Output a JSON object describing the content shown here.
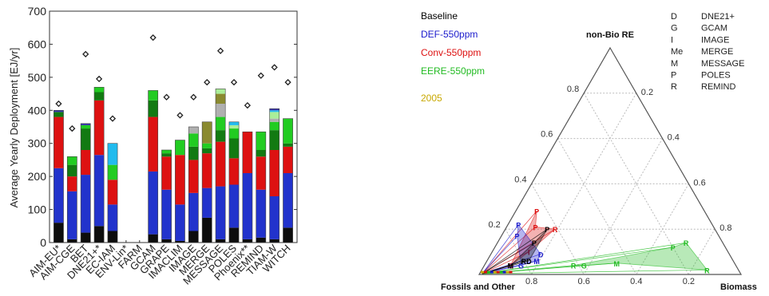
{
  "bar_chart": {
    "ylabel": "Average Yearly Deployment [EJ/yr]",
    "ylim": [
      0,
      700
    ],
    "yticks": [
      "0",
      "100",
      "200",
      "300",
      "400",
      "500",
      "600",
      "700"
    ],
    "colors": {
      "l1": "#0d0d0d",
      "l2": "#2233cc",
      "l3": "#dd1111",
      "l4": "#127a12",
      "l5": "#22cc22",
      "l6": "#b0b0b0",
      "l7": "#8a8a30",
      "l8": "#aaee99",
      "l9": "#22bbee",
      "l10": "#3333aa",
      "diamond": "#222222"
    }
  },
  "chart_data": [
    {
      "type": "bar",
      "stacked": true,
      "categories": [
        "AIM-EU*",
        "AIM-CGE",
        "BET",
        "DNE21+*",
        "EC-IAM",
        "ENV-Lin*",
        "FARM",
        "GCAM",
        "GRAPE",
        "IMACLIM",
        "IMAGE",
        "MERGE",
        "MESSAGE",
        "POLES",
        "Phoenix**",
        "REMIND",
        "TIAM-W",
        "WITCH"
      ],
      "series": [
        {
          "name": "",
          "color_key": "l1",
          "values": [
            60,
            10,
            30,
            50,
            35,
            0,
            0,
            25,
            10,
            5,
            35,
            75,
            10,
            45,
            10,
            15,
            10,
            45
          ]
        },
        {
          "name": "",
          "color_key": "l2",
          "values": [
            165,
            145,
            175,
            215,
            80,
            0,
            0,
            190,
            150,
            110,
            115,
            90,
            160,
            130,
            200,
            145,
            130,
            165
          ]
        },
        {
          "name": "",
          "color_key": "l3",
          "values": [
            155,
            45,
            75,
            165,
            75,
            0,
            0,
            165,
            100,
            150,
            100,
            105,
            135,
            80,
            125,
            100,
            140,
            80
          ]
        },
        {
          "name": "",
          "color_key": "l4",
          "values": [
            15,
            35,
            65,
            25,
            0,
            0,
            0,
            50,
            10,
            0,
            40,
            15,
            35,
            60,
            0,
            20,
            60,
            10
          ]
        },
        {
          "name": "",
          "color_key": "l5",
          "values": [
            0,
            25,
            10,
            15,
            45,
            0,
            0,
            30,
            10,
            45,
            40,
            15,
            40,
            30,
            0,
            55,
            25,
            75
          ]
        },
        {
          "name": "",
          "color_key": "l6",
          "values": [
            0,
            0,
            0,
            0,
            0,
            0,
            0,
            0,
            0,
            0,
            20,
            0,
            40,
            0,
            0,
            0,
            10,
            0
          ]
        },
        {
          "name": "",
          "color_key": "l7",
          "values": [
            0,
            0,
            0,
            0,
            0,
            0,
            0,
            0,
            0,
            0,
            0,
            65,
            30,
            0,
            0,
            0,
            0,
            0
          ]
        },
        {
          "name": "",
          "color_key": "l8",
          "values": [
            0,
            0,
            0,
            0,
            0,
            0,
            0,
            0,
            0,
            0,
            0,
            0,
            15,
            10,
            0,
            0,
            20,
            0
          ]
        },
        {
          "name": "",
          "color_key": "l9",
          "values": [
            0,
            0,
            0,
            0,
            65,
            0,
            0,
            0,
            0,
            0,
            0,
            0,
            0,
            10,
            0,
            0,
            5,
            0
          ]
        },
        {
          "name": "",
          "color_key": "l10",
          "values": [
            5,
            0,
            5,
            0,
            0,
            0,
            0,
            0,
            0,
            0,
            0,
            0,
            0,
            0,
            0,
            0,
            5,
            0
          ]
        }
      ],
      "markers": {
        "name": "",
        "values": [
          420,
          345,
          570,
          495,
          375,
          null,
          null,
          620,
          440,
          385,
          440,
          485,
          580,
          485,
          415,
          505,
          530,
          485
        ]
      },
      "ylabel": "Average Yearly Deployment [EJ/yr]",
      "ylim": [
        0,
        700
      ]
    },
    {
      "type": "ternary",
      "axes": {
        "top": "non-Bio RE",
        "left": "Fossils and Other",
        "right": "Biomass"
      },
      "tick_values": [
        "0.2",
        "0.4",
        "0.6",
        "0.8"
      ],
      "legend": [
        {
          "label": "Baseline",
          "color": "#000000"
        },
        {
          "label": "DEF-550ppm",
          "color": "#1a1acc"
        },
        {
          "label": "Conv-550ppm",
          "color": "#dd1111"
        },
        {
          "label": "EERE-550ppm",
          "color": "#22bb22"
        },
        {
          "label": "2005",
          "color": "#c8a800"
        }
      ],
      "model_key": [
        {
          "code": "D",
          "name": "DNE21+"
        },
        {
          "code": "G",
          "name": "GCAM"
        },
        {
          "code": "I",
          "name": "IMAGE"
        },
        {
          "code": "Me",
          "name": "MERGE"
        },
        {
          "code": "M",
          "name": "MESSAGE"
        },
        {
          "code": "P",
          "name": "POLES"
        },
        {
          "code": "R",
          "name": "REMIND"
        }
      ],
      "scenarios": [
        {
          "color": "#22bb22",
          "region": [
            [
              0.86,
              0.04
            ],
            [
              0.82,
              0.1
            ],
            [
              0.7,
              0.2
            ],
            [
              0.72,
              0.04
            ]
          ],
          "points": [
            {
              "code": "R",
              "fossil": 0.14,
              "bio": 0.72,
              "re": 0.14
            },
            {
              "code": "R",
              "fossil": 0.12,
              "bio": 0.86,
              "re": 0.02
            },
            {
              "code": "P",
              "fossil": 0.2,
              "bio": 0.68,
              "re": 0.12
            },
            {
              "code": "R",
              "fossil": 0.62,
              "bio": 0.34,
              "re": 0.04
            },
            {
              "code": "M",
              "fossil": 0.45,
              "bio": 0.5,
              "re": 0.05
            },
            {
              "code": "G",
              "fossil": 0.58,
              "bio": 0.38,
              "re": 0.04
            }
          ]
        },
        {
          "color": "#dd1111",
          "points": [
            {
              "code": "P",
              "fossil": 0.64,
              "bio": 0.08,
              "re": 0.28
            },
            {
              "code": "P",
              "fossil": 0.68,
              "bio": 0.11,
              "re": 0.21
            },
            {
              "code": "R",
              "fossil": 0.61,
              "bio": 0.19,
              "re": 0.2
            },
            {
              "code": "G",
              "fossil": 0.86,
              "bio": 0.1,
              "re": 0.04
            },
            {
              "code": "I",
              "fossil": 0.76,
              "bio": 0.14,
              "re": 0.1
            }
          ]
        },
        {
          "color": "#1a1acc",
          "points": [
            {
              "code": "P",
              "fossil": 0.74,
              "bio": 0.04,
              "re": 0.22
            },
            {
              "code": "P",
              "fossil": 0.77,
              "bio": 0.06,
              "re": 0.17
            },
            {
              "code": "D",
              "fossil": 0.72,
              "bio": 0.19,
              "re": 0.09
            },
            {
              "code": "M",
              "fossil": 0.75,
              "bio": 0.19,
              "re": 0.06
            },
            {
              "code": "G",
              "fossil": 0.82,
              "bio": 0.14,
              "re": 0.04
            }
          ]
        },
        {
          "color": "#000000",
          "points": [
            {
              "code": "P",
              "fossil": 0.64,
              "bio": 0.16,
              "re": 0.2
            },
            {
              "code": "P",
              "fossil": 0.72,
              "bio": 0.14,
              "re": 0.14
            },
            {
              "code": "R",
              "fossil": 0.8,
              "bio": 0.14,
              "re": 0.06
            },
            {
              "code": "D",
              "fossil": 0.78,
              "bio": 0.16,
              "re": 0.06
            },
            {
              "code": "M",
              "fossil": 0.86,
              "bio": 0.1,
              "re": 0.04
            }
          ]
        }
      ]
    }
  ]
}
